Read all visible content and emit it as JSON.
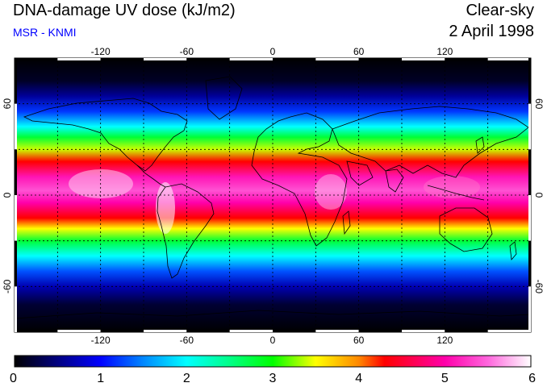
{
  "header": {
    "title": "DNA-damage UV dose (kJ/m2)",
    "source": "MSR - KNMI",
    "condition": "Clear-sky",
    "date": "2 April 1998"
  },
  "map": {
    "lon_ticks": [
      "-120",
      "-60",
      "0",
      "60",
      "120"
    ],
    "lon_tick_values": [
      -120,
      -60,
      0,
      60,
      120
    ],
    "lat_ticks": [
      "60",
      "0",
      "-60"
    ],
    "lat_tick_values": [
      60,
      0,
      -60
    ],
    "lon_range": [
      -180,
      180
    ],
    "lat_range": [
      -90,
      90
    ],
    "grid_lons": [
      -150,
      -120,
      -90,
      -60,
      -30,
      0,
      30,
      60,
      90,
      120,
      150
    ],
    "grid_lats": [
      -60,
      -30,
      0,
      30,
      60
    ],
    "grid": true
  },
  "colorbar": {
    "labels": [
      "0",
      "1",
      "2",
      "3",
      "4",
      "5",
      "6"
    ],
    "min": 0,
    "max": 6,
    "stops": [
      {
        "value": 0.0,
        "color": "#000000"
      },
      {
        "value": 0.5,
        "color": "#000080"
      },
      {
        "value": 1.0,
        "color": "#0000ff"
      },
      {
        "value": 1.5,
        "color": "#0088ff"
      },
      {
        "value": 2.0,
        "color": "#00ffff"
      },
      {
        "value": 2.5,
        "color": "#00ff88"
      },
      {
        "value": 3.0,
        "color": "#00ff00"
      },
      {
        "value": 3.5,
        "color": "#ffff00"
      },
      {
        "value": 4.0,
        "color": "#ff8800"
      },
      {
        "value": 4.3,
        "color": "#ff0000"
      },
      {
        "value": 5.0,
        "color": "#ff00aa"
      },
      {
        "value": 5.5,
        "color": "#ff66dd"
      },
      {
        "value": 6.0,
        "color": "#ffffff"
      }
    ]
  }
}
